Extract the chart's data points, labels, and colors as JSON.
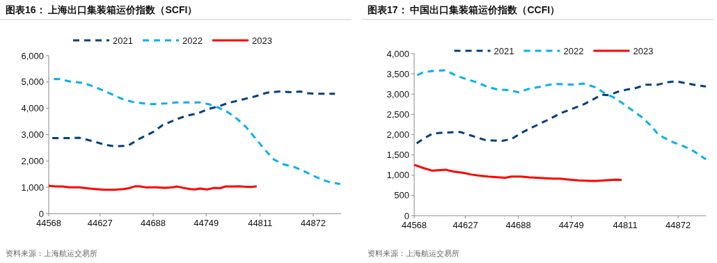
{
  "chart_data": [
    {
      "type": "line",
      "title": "图表16：  上海出口集装箱运价指数（SCFI）",
      "legend": "top",
      "grid": false,
      "xlim": [
        44568,
        44904
      ],
      "xticks": [
        44568,
        44627,
        44688,
        44749,
        44811,
        44872
      ],
      "ylim": [
        0,
        6000
      ],
      "yticks": [
        {
          "value": 0,
          "label": "0"
        },
        {
          "value": 1000,
          "label": "1,000"
        },
        {
          "value": 2000,
          "label": "2,000"
        },
        {
          "value": 3000,
          "label": "3,000"
        },
        {
          "value": 4000,
          "label": "4,000"
        },
        {
          "value": 5000,
          "label": "5,000"
        },
        {
          "value": 6000,
          "label": "6,000"
        }
      ],
      "annotations": [
        "资料来源：上海航运交易所"
      ],
      "series": [
        {
          "name": "2021",
          "color": "#003f80",
          "line_style": "dashed",
          "x": [
            44568,
            44592,
            44603,
            44619,
            44632,
            44643,
            44659,
            44672,
            44688,
            44699,
            44715,
            44726,
            44739,
            44752,
            44763,
            44774,
            44790,
            44806,
            44819,
            44833,
            44849,
            44857,
            44865,
            44881,
            44897
          ],
          "values": [
            2865,
            2865,
            2880,
            2750,
            2620,
            2560,
            2575,
            2840,
            3100,
            3365,
            3585,
            3715,
            3800,
            3980,
            4070,
            4200,
            4330,
            4460,
            4595,
            4640,
            4610,
            4640,
            4570,
            4550,
            4550
          ]
        },
        {
          "name": "2022",
          "color": "#00b0f0",
          "line_style": "dashed",
          "x": [
            44568,
            44581,
            44592,
            44608,
            44624,
            44638,
            44651,
            44664,
            44678,
            44688,
            44704,
            44715,
            44726,
            44742,
            44752,
            44763,
            44774,
            44785,
            44795,
            44806,
            44817,
            44827,
            44838,
            44849,
            44859,
            44870,
            44881,
            44892,
            44903
          ],
          "values": [
            5125,
            5105,
            5020,
            4965,
            4770,
            4570,
            4375,
            4245,
            4185,
            4155,
            4190,
            4225,
            4225,
            4220,
            4155,
            4025,
            3850,
            3585,
            3280,
            2840,
            2400,
            2050,
            1870,
            1785,
            1650,
            1475,
            1300,
            1185,
            1125
          ]
        },
        {
          "name": "2023",
          "color": "#ff0000",
          "line_style": "solid",
          "x": [
            44568,
            44576,
            44584,
            44592,
            44603,
            44613,
            44624,
            44632,
            44643,
            44654,
            44660,
            44667,
            44672,
            44680,
            44691,
            44702,
            44710,
            44715,
            44723,
            44731,
            44736,
            44742,
            44750,
            44758,
            44765,
            44771,
            44779,
            44787,
            44795,
            44801,
            44807
          ],
          "values": [
            1055,
            1030,
            1030,
            995,
            995,
            960,
            925,
            905,
            905,
            930,
            965,
            1035,
            1035,
            995,
            995,
            975,
            995,
            1030,
            975,
            930,
            920,
            950,
            920,
            975,
            965,
            1030,
            1030,
            1035,
            1020,
            1010,
            1035
          ]
        }
      ]
    },
    {
      "type": "line",
      "title": "图表17：  中国出口集装箱运价指数（CCFI）",
      "legend": "top",
      "grid": false,
      "xlim": [
        44568,
        44904
      ],
      "xticks": [
        44568,
        44627,
        44688,
        44749,
        44811,
        44872
      ],
      "ylim": [
        0,
        4000
      ],
      "yticks": [
        {
          "value": 0,
          "label": "0"
        },
        {
          "value": 500,
          "label": "500"
        },
        {
          "value": 1000,
          "label": "1,000"
        },
        {
          "value": 1500,
          "label": "1,500"
        },
        {
          "value": 2000,
          "label": "2,000"
        },
        {
          "value": 2500,
          "label": "2,500"
        },
        {
          "value": 3000,
          "label": "3,000"
        },
        {
          "value": 3500,
          "label": "3,500"
        },
        {
          "value": 4000,
          "label": "4,000"
        }
      ],
      "annotations": [
        "资料来源：上海航运交易所"
      ],
      "series": [
        {
          "name": "2021",
          "color": "#003f80",
          "line_style": "dashed",
          "x": [
            44568,
            44578,
            44589,
            44602,
            44621,
            44634,
            44650,
            44669,
            44680,
            44691,
            44701,
            44712,
            44723,
            44736,
            44749,
            44763,
            44776,
            44784,
            44792,
            44803,
            44814,
            44824,
            44835,
            44848,
            44859,
            44870,
            44883,
            44894,
            44904
          ],
          "values": [
            1740,
            1890,
            2025,
            2050,
            2065,
            1975,
            1865,
            1845,
            1890,
            2035,
            2150,
            2260,
            2375,
            2520,
            2630,
            2745,
            2890,
            2985,
            2975,
            3060,
            3115,
            3155,
            3230,
            3230,
            3290,
            3315,
            3260,
            3215,
            3190
          ]
        },
        {
          "name": "2022",
          "color": "#00b0f0",
          "line_style": "dashed",
          "x": [
            44568,
            44578,
            44589,
            44604,
            44616,
            44626,
            44640,
            44653,
            44664,
            44677,
            44688,
            44701,
            44712,
            44723,
            44733,
            44744,
            44752,
            44763,
            44776,
            44787,
            44798,
            44808,
            44819,
            44830,
            44840,
            44848,
            44856,
            44867,
            44878,
            44889,
            44904
          ],
          "values": [
            3430,
            3535,
            3570,
            3590,
            3460,
            3385,
            3290,
            3175,
            3115,
            3100,
            3045,
            3135,
            3175,
            3230,
            3250,
            3240,
            3230,
            3260,
            3175,
            3030,
            2915,
            2775,
            2605,
            2435,
            2235,
            2035,
            1920,
            1805,
            1720,
            1605,
            1390
          ]
        },
        {
          "name": "2023",
          "color": "#ff0000",
          "line_style": "solid",
          "x": [
            44568,
            44578,
            44589,
            44604,
            44613,
            44624,
            44634,
            44642,
            44653,
            44664,
            44673,
            44680,
            44691,
            44701,
            44717,
            44728,
            44736,
            44747,
            44757,
            44771,
            44779,
            44790,
            44800,
            44807
          ],
          "values": [
            1255,
            1180,
            1110,
            1135,
            1090,
            1060,
            1015,
            990,
            965,
            950,
            935,
            965,
            965,
            945,
            925,
            915,
            915,
            890,
            870,
            860,
            860,
            875,
            890,
            885
          ]
        }
      ]
    }
  ]
}
